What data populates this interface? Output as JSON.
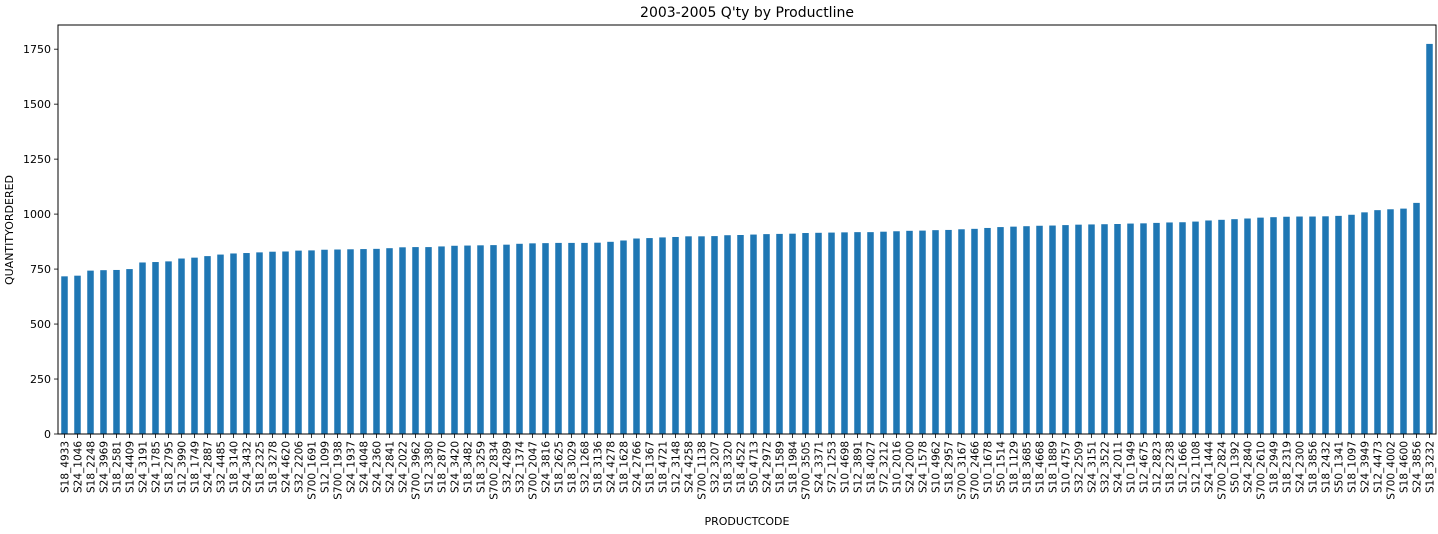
{
  "chart_data": {
    "type": "bar",
    "title": "2003-2005 Q'ty by Productline",
    "xlabel": "PRODUCTCODE",
    "ylabel": "QUANTITYORDERED",
    "ylim": [
      0,
      1860
    ],
    "yticks": [
      0,
      250,
      500,
      750,
      1000,
      1250,
      1500,
      1750
    ],
    "grid": false,
    "bar_color": "#1f77b4",
    "categories": [
      "S18_4933",
      "S24_1046",
      "S18_2248",
      "S24_3969",
      "S18_2581",
      "S18_4409",
      "S24_3191",
      "S24_1785",
      "S18_2795",
      "S12_3990",
      "S18_1749",
      "S24_2887",
      "S32_4485",
      "S18_3140",
      "S24_3432",
      "S18_2325",
      "S18_3278",
      "S24_4620",
      "S32_2206",
      "S700_1691",
      "S12_1099",
      "S700_1938",
      "S24_1937",
      "S24_4048",
      "S24_2360",
      "S24_2841",
      "S24_2022",
      "S700_3962",
      "S12_3380",
      "S18_2870",
      "S24_3420",
      "S18_3482",
      "S18_3259",
      "S700_2834",
      "S32_4289",
      "S32_1374",
      "S700_2047",
      "S24_3816",
      "S18_2625",
      "S18_3029",
      "S32_1268",
      "S18_3136",
      "S24_4278",
      "S18_1628",
      "S24_2766",
      "S18_1367",
      "S18_4721",
      "S12_3148",
      "S24_4258",
      "S700_1138",
      "S32_3207",
      "S18_3320",
      "S18_4522",
      "S50_4713",
      "S24_2972",
      "S18_1589",
      "S18_1984",
      "S700_3505",
      "S24_3371",
      "S72_1253",
      "S10_4698",
      "S12_3891",
      "S18_4027",
      "S72_3212",
      "S10_2016",
      "S24_2000",
      "S24_1578",
      "S10_4962",
      "S18_2957",
      "S700_3167",
      "S700_2466",
      "S10_1678",
      "S50_1514",
      "S18_1129",
      "S18_3685",
      "S18_4668",
      "S18_1889",
      "S10_4757",
      "S32_2509",
      "S24_3151",
      "S32_3522",
      "S24_2011",
      "S10_1949",
      "S12_4675",
      "S12_2823",
      "S18_2238",
      "S12_1666",
      "S12_1108",
      "S24_1444",
      "S700_2824",
      "S50_1392",
      "S24_2840",
      "S700_2610",
      "S18_2949",
      "S18_2319",
      "S24_2300",
      "S18_3856",
      "S18_2432",
      "S50_1341",
      "S18_1097",
      "S24_3949",
      "S12_4473",
      "S700_4002",
      "S18_4600",
      "S24_3856",
      "S18_3232"
    ],
    "values": [
      717,
      720,
      743,
      745,
      746,
      750,
      780,
      782,
      785,
      798,
      802,
      809,
      816,
      821,
      823,
      826,
      829,
      830,
      834,
      835,
      838,
      839,
      840,
      841,
      842,
      845,
      849,
      850,
      850,
      853,
      856,
      857,
      858,
      859,
      861,
      865,
      867,
      868,
      869,
      869,
      869,
      870,
      874,
      880,
      889,
      891,
      894,
      896,
      899,
      899,
      900,
      904,
      905,
      907,
      909,
      910,
      911,
      914,
      915,
      916,
      917,
      918,
      918,
      920,
      922,
      924,
      925,
      927,
      928,
      931,
      933,
      937,
      941,
      943,
      945,
      947,
      948,
      950,
      952,
      953,
      954,
      955,
      957,
      958,
      960,
      962,
      963,
      966,
      971,
      974,
      977,
      980,
      984,
      986,
      988,
      989,
      989,
      990,
      992,
      997,
      1008,
      1018,
      1022,
      1025,
      1051,
      1774
    ]
  }
}
